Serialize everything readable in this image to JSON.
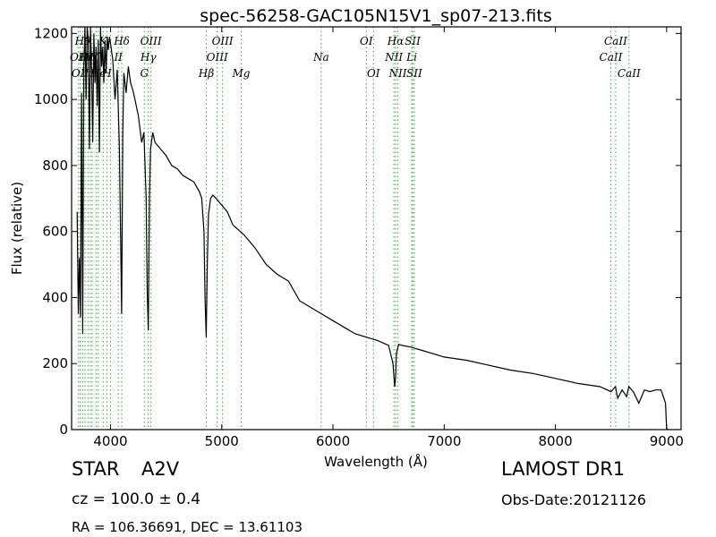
{
  "chart_data": {
    "type": "line",
    "title": "spec-56258-GAC105N15V1_sp07-213.fits",
    "xlabel": "Wavelength (Å)",
    "ylabel": "Flux (relative)",
    "xlim": [
      3650,
      9130
    ],
    "ylim": [
      0,
      1220
    ],
    "xticks": [
      4000,
      5000,
      6000,
      7000,
      8000,
      9000
    ],
    "yticks": [
      0,
      200,
      400,
      600,
      800,
      1000,
      1200
    ],
    "grid": false,
    "series": [
      {
        "x": [
          3700,
          3710,
          3720,
          3730,
          3740,
          3750,
          3760,
          3770,
          3780,
          3790,
          3800,
          3810,
          3820,
          3830,
          3840,
          3850,
          3860,
          3870,
          3880,
          3890,
          3900,
          3910,
          3920,
          3930,
          3940,
          3950,
          3960,
          3970,
          3980,
          3990,
          4000,
          4020,
          4040,
          4060,
          4080,
          4090,
          4100,
          4110,
          4120,
          4140,
          4160,
          4180,
          4200,
          4220,
          4250,
          4280,
          4300,
          4320,
          4330,
          4340,
          4350,
          4360,
          4380,
          4400,
          4450,
          4500,
          4550,
          4600,
          4650,
          4700,
          4750,
          4800,
          4820,
          4840,
          4850,
          4860,
          4870,
          4880,
          4900,
          4920,
          4950,
          5000,
          5050,
          5100,
          5200,
          5300,
          5400,
          5500,
          5600,
          5700,
          5800,
          5900,
          6000,
          6100,
          6200,
          6300,
          6400,
          6500,
          6540,
          6555,
          6563,
          6570,
          6590,
          6620,
          6700,
          6800,
          6900,
          7000,
          7200,
          7400,
          7600,
          7800,
          8000,
          8200,
          8400,
          8500,
          8540,
          8560,
          8600,
          8640,
          8660,
          8700,
          8750,
          8800,
          8850,
          8900,
          8950,
          8990,
          9000,
          9010
        ],
        "values": [
          660,
          350,
          520,
          340,
          1020,
          290,
          1100,
          1220,
          1000,
          1220,
          1180,
          850,
          1220,
          1080,
          870,
          1200,
          1050,
          1160,
          980,
          1180,
          840,
          1220,
          1100,
          1160,
          1050,
          1180,
          1080,
          1190,
          1150,
          1190,
          1170,
          1120,
          1000,
          1090,
          850,
          600,
          350,
          900,
          1080,
          1020,
          1100,
          1050,
          1030,
          1000,
          950,
          870,
          900,
          700,
          420,
          300,
          700,
          850,
          900,
          870,
          850,
          830,
          800,
          790,
          770,
          760,
          750,
          720,
          700,
          600,
          400,
          280,
          500,
          650,
          700,
          710,
          700,
          680,
          660,
          620,
          590,
          550,
          500,
          470,
          450,
          390,
          370,
          350,
          330,
          310,
          290,
          280,
          270,
          255,
          200,
          130,
          160,
          230,
          258,
          255,
          250,
          240,
          230,
          220,
          210,
          195,
          180,
          170,
          155,
          140,
          130,
          115,
          130,
          95,
          120,
          100,
          130,
          115,
          80,
          120,
          115,
          120,
          120,
          80,
          5,
          0
        ]
      }
    ],
    "line_markers": [
      {
        "wl": 3712,
        "label": "OII",
        "row": 2
      },
      {
        "wl": 3727,
        "label": "OII",
        "row": 3
      },
      {
        "wl": 3750,
        "label": "Hθ",
        "row": 1
      },
      {
        "wl": 3771,
        "label": "Hι",
        "row": 2
      },
      {
        "wl": 3797,
        "label": "Hη",
        "row": 2
      },
      {
        "wl": 3819,
        "label": "",
        "row": 1
      },
      {
        "wl": 3835,
        "label": "Hζ",
        "row": 2
      },
      {
        "wl": 3870,
        "label": "",
        "row": 1
      },
      {
        "wl": 3889,
        "label": "He",
        "row": 3
      },
      {
        "wl": 3934,
        "label": "K",
        "row": 1
      },
      {
        "wl": 3968,
        "label": "H",
        "row": 3
      },
      {
        "wl": 4000,
        "label": "",
        "row": 1
      },
      {
        "wl": 4070,
        "label": "II",
        "row": 2
      },
      {
        "wl": 4101,
        "label": "Hδ",
        "row": 1
      },
      {
        "wl": 4304,
        "label": "G",
        "row": 3
      },
      {
        "wl": 4340,
        "label": "Hγ",
        "row": 2
      },
      {
        "wl": 4363,
        "label": "OIII",
        "row": 1
      },
      {
        "wl": 4861,
        "label": "Hβ",
        "row": 3
      },
      {
        "wl": 4959,
        "label": "OIII",
        "row": 2
      },
      {
        "wl": 5007,
        "label": "OIII",
        "row": 1
      },
      {
        "wl": 5175,
        "label": "Mg",
        "row": 3
      },
      {
        "wl": 5894,
        "label": "Na",
        "row": 2
      },
      {
        "wl": 6300,
        "label": "OI",
        "row": 1
      },
      {
        "wl": 6364,
        "label": "OI",
        "row": 3
      },
      {
        "wl": 6548,
        "label": "NII",
        "row": 2
      },
      {
        "wl": 6563,
        "label": "Hα",
        "row": 1
      },
      {
        "wl": 6583,
        "label": "NII",
        "row": 3
      },
      {
        "wl": 6708,
        "label": "Li",
        "row": 2
      },
      {
        "wl": 6716,
        "label": "SII",
        "row": 1
      },
      {
        "wl": 6731,
        "label": "SII",
        "row": 3
      },
      {
        "wl": 8498,
        "label": "CaII",
        "row": 2
      },
      {
        "wl": 8542,
        "label": "CaII",
        "row": 1
      },
      {
        "wl": 8662,
        "label": "CaII",
        "row": 3
      }
    ]
  },
  "info": {
    "object_class": "STAR",
    "subclass": "A2V",
    "survey": "LAMOST DR1",
    "redshift": "cz = 100.0 ± 0.4",
    "obs_date": "Obs-Date:20121126",
    "coords": "RA = 106.36691, DEC = 13.61103"
  },
  "colors": {
    "spectrum": "#000000",
    "line_markers": "#4cb04c",
    "background": "#ffffff"
  }
}
